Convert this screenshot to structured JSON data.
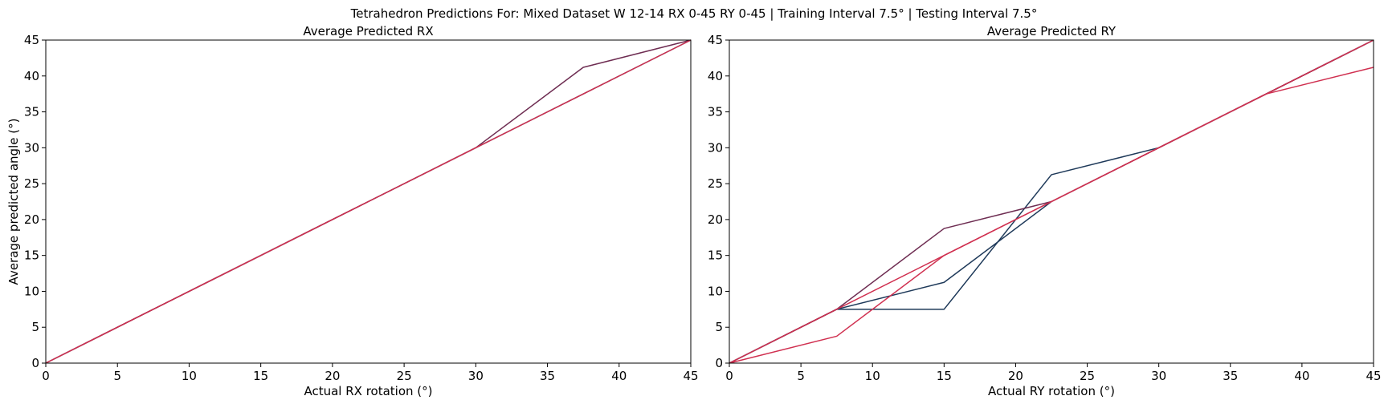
{
  "figure": {
    "suptitle": "Tetrahedron Predictions For: Mixed Dataset W 12-14 RX 0-45 RY 0-45 | Training Interval 7.5° | Testing Interval 7.5°"
  },
  "colors": {
    "navy": "#1f3a5a",
    "plum": "#6e2d52",
    "crimson": "#d03050",
    "axes": "#000000"
  },
  "chart_data": [
    {
      "type": "line",
      "title": "Average Predicted RX",
      "xlabel": "Actual RX rotation (°)",
      "ylabel": "Average predicted angle (°)",
      "xlim": [
        0,
        45
      ],
      "ylim": [
        0,
        45
      ],
      "xticks": [
        0,
        5,
        10,
        15,
        20,
        25,
        30,
        35,
        40,
        45
      ],
      "yticks": [
        0,
        5,
        10,
        15,
        20,
        25,
        30,
        35,
        40,
        45
      ],
      "grid": false,
      "series": [
        {
          "color": "#1f3a5a",
          "x": [
            0,
            7.5,
            15,
            22.5,
            30,
            37.5,
            45
          ],
          "y": [
            0,
            7.5,
            15,
            22.5,
            30,
            37.5,
            45
          ]
        },
        {
          "color": "#6e2d52",
          "x": [
            0,
            7.5,
            15,
            22.5,
            30,
            37.5,
            45
          ],
          "y": [
            0,
            7.5,
            15,
            22.5,
            30,
            41.2,
            45
          ]
        },
        {
          "color": "#d03050",
          "x": [
            0,
            7.5,
            15,
            22.5,
            30,
            37.5,
            45
          ],
          "y": [
            0,
            7.5,
            15,
            22.5,
            30,
            37.5,
            45
          ]
        }
      ]
    },
    {
      "type": "line",
      "title": "Average Predicted RY",
      "xlabel": "Actual RY rotation (°)",
      "ylabel": "",
      "xlim": [
        0,
        45
      ],
      "ylim": [
        0,
        45
      ],
      "xticks": [
        0,
        5,
        10,
        15,
        20,
        25,
        30,
        35,
        40,
        45
      ],
      "yticks": [
        0,
        5,
        10,
        15,
        20,
        25,
        30,
        35,
        40,
        45
      ],
      "grid": false,
      "series": [
        {
          "color": "#1f3a5a",
          "x": [
            0,
            7.5,
            15,
            22.5,
            30,
            37.5,
            45
          ],
          "y": [
            0,
            7.5,
            11.25,
            22.5,
            30,
            37.5,
            45
          ]
        },
        {
          "color": "#1f3a5a",
          "x": [
            0,
            7.5,
            15,
            22.5,
            30,
            37.5,
            45
          ],
          "y": [
            0,
            7.5,
            7.5,
            26.25,
            30,
            37.5,
            45
          ]
        },
        {
          "color": "#6e2d52",
          "x": [
            0,
            7.5,
            15,
            22.5,
            30,
            37.5,
            45
          ],
          "y": [
            0,
            7.5,
            18.75,
            22.5,
            30,
            37.5,
            45
          ]
        },
        {
          "color": "#d03050",
          "x": [
            0,
            7.5,
            15,
            22.5,
            30,
            37.5,
            45
          ],
          "y": [
            0,
            3.75,
            15,
            22.5,
            30,
            37.5,
            41.2
          ]
        },
        {
          "color": "#d03050",
          "x": [
            0,
            7.5,
            15,
            22.5,
            30,
            37.5,
            45
          ],
          "y": [
            0,
            7.5,
            15,
            22.5,
            30,
            37.5,
            45
          ]
        }
      ]
    }
  ]
}
